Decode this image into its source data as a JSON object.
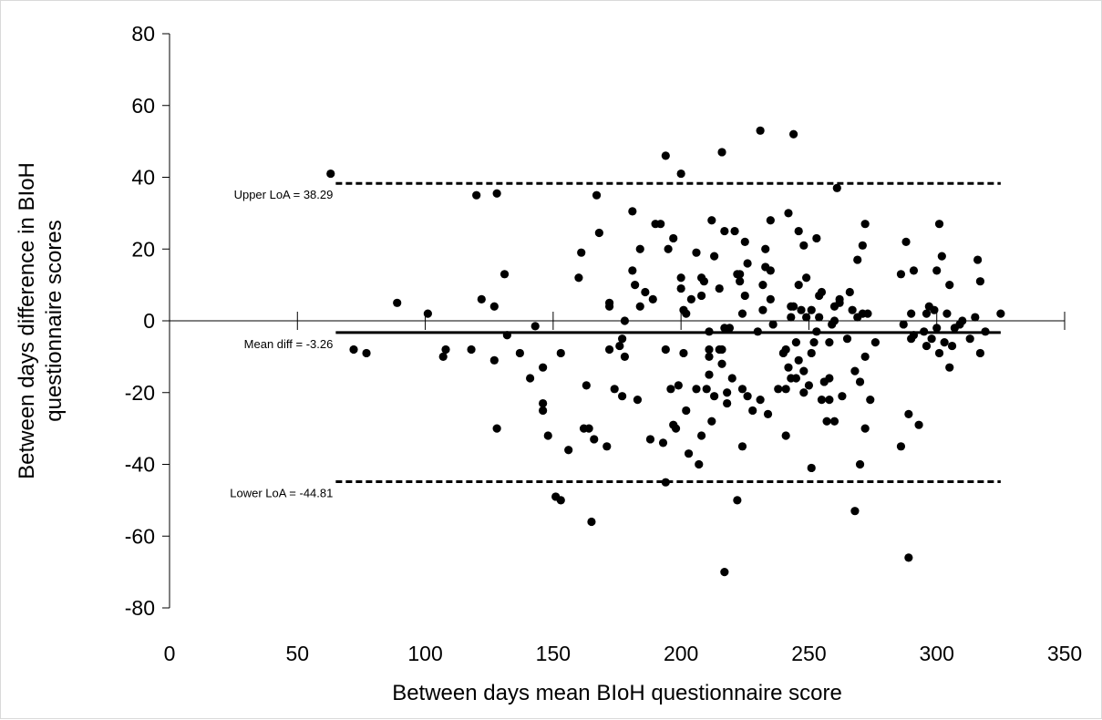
{
  "chart_data": {
    "type": "scatter",
    "title": "",
    "xlabel": "Between days mean BIoH questionnaire score",
    "ylabel": "Between days difference in BIoH questionnaire scores",
    "xlim": [
      0,
      350
    ],
    "ylim": [
      -80,
      80
    ],
    "x_ticks": [
      0,
      50,
      100,
      150,
      200,
      250,
      300,
      350
    ],
    "y_ticks": [
      80,
      60,
      40,
      20,
      0,
      -20,
      -40,
      -60,
      -80
    ],
    "x_tick_labels": [
      "0",
      "50",
      "100",
      "150",
      "200",
      "250",
      "300",
      "350"
    ],
    "y_tick_labels": [
      "80",
      "60",
      "40",
      "20",
      "0",
      "-20",
      "-40",
      "-60",
      "-80"
    ],
    "grid": false,
    "legend": "none",
    "marker_color": "#000000",
    "reference_lines": [
      {
        "label": "Upper LoA = 38.29",
        "y": 38.29,
        "style": "dashed",
        "x_start": 65,
        "x_end": 325
      },
      {
        "label": "Mean diff = -3.26",
        "y": -3.26,
        "style": "solid",
        "x_start": 65,
        "x_end": 325
      },
      {
        "label": "Lower LoA = -44.81",
        "y": -44.81,
        "style": "dashed",
        "x_start": 65,
        "x_end": 325
      }
    ],
    "points": [
      [
        63,
        41
      ],
      [
        72,
        -8
      ],
      [
        77,
        -9
      ],
      [
        89,
        5
      ],
      [
        101,
        2
      ],
      [
        107,
        -10
      ],
      [
        108,
        -8
      ],
      [
        118,
        -8
      ],
      [
        120,
        35
      ],
      [
        122,
        6
      ],
      [
        127,
        4
      ],
      [
        127,
        -11
      ],
      [
        128,
        -30
      ],
      [
        128,
        35.5
      ],
      [
        131,
        13
      ],
      [
        132,
        -4
      ],
      [
        137,
        -9
      ],
      [
        141,
        -16
      ],
      [
        143,
        -1.5
      ],
      [
        146,
        -13
      ],
      [
        146,
        -23
      ],
      [
        146,
        -25
      ],
      [
        148,
        -32
      ],
      [
        151,
        -49
      ],
      [
        153,
        -9
      ],
      [
        153,
        -50
      ],
      [
        156,
        -36
      ],
      [
        160,
        12
      ],
      [
        161,
        19
      ],
      [
        162,
        -30
      ],
      [
        163,
        -18
      ],
      [
        164,
        -30
      ],
      [
        165,
        -56
      ],
      [
        166,
        -33
      ],
      [
        167,
        35
      ],
      [
        168,
        24.5
      ],
      [
        171,
        -35
      ],
      [
        172,
        4
      ],
      [
        172,
        5
      ],
      [
        172,
        -8
      ],
      [
        174,
        -19
      ],
      [
        176,
        -7
      ],
      [
        177,
        -5
      ],
      [
        177,
        -21
      ],
      [
        178,
        -10
      ],
      [
        178,
        0
      ],
      [
        181,
        30.5
      ],
      [
        181,
        14
      ],
      [
        182,
        10
      ],
      [
        183,
        -22
      ],
      [
        184,
        4
      ],
      [
        184,
        20
      ],
      [
        186,
        8
      ],
      [
        188,
        -33
      ],
      [
        189,
        6
      ],
      [
        190,
        27
      ],
      [
        192,
        27
      ],
      [
        193,
        -34
      ],
      [
        194,
        46
      ],
      [
        194,
        -8
      ],
      [
        194,
        -45
      ],
      [
        195,
        20
      ],
      [
        196,
        -19
      ],
      [
        197,
        -29
      ],
      [
        197,
        23
      ],
      [
        198,
        -30
      ],
      [
        199,
        -18
      ],
      [
        200,
        9
      ],
      [
        200,
        12
      ],
      [
        200,
        41
      ],
      [
        201,
        3
      ],
      [
        201,
        -9
      ],
      [
        202,
        -25
      ],
      [
        202,
        2
      ],
      [
        203,
        -37
      ],
      [
        204,
        6
      ],
      [
        206,
        -19
      ],
      [
        206,
        19
      ],
      [
        207,
        -40
      ],
      [
        208,
        -32
      ],
      [
        208,
        7
      ],
      [
        208,
        12
      ],
      [
        209,
        11
      ],
      [
        210,
        -19
      ],
      [
        211,
        -3
      ],
      [
        211,
        -8
      ],
      [
        211,
        -10
      ],
      [
        211,
        -15
      ],
      [
        212,
        28
      ],
      [
        212,
        -28
      ],
      [
        213,
        -21
      ],
      [
        213,
        18
      ],
      [
        215,
        -8
      ],
      [
        215,
        9
      ],
      [
        216,
        -12
      ],
      [
        216,
        -8
      ],
      [
        217,
        -2
      ],
      [
        216,
        47
      ],
      [
        217,
        25
      ],
      [
        217,
        -70
      ],
      [
        218,
        -23
      ],
      [
        218,
        -20
      ],
      [
        219,
        -2
      ],
      [
        220,
        -16
      ],
      [
        221,
        25
      ],
      [
        222,
        13
      ],
      [
        222,
        -50
      ],
      [
        223,
        11
      ],
      [
        223,
        13
      ],
      [
        224,
        2
      ],
      [
        224,
        -35
      ],
      [
        224,
        -19
      ],
      [
        225,
        7
      ],
      [
        225,
        22
      ],
      [
        226,
        16
      ],
      [
        226,
        -21
      ],
      [
        228,
        -25
      ],
      [
        230,
        -3
      ],
      [
        231,
        -22
      ],
      [
        231,
        53
      ],
      [
        232,
        3
      ],
      [
        232,
        10
      ],
      [
        233,
        20
      ],
      [
        233,
        15
      ],
      [
        234,
        -26
      ],
      [
        235,
        6
      ],
      [
        235,
        14
      ],
      [
        235,
        28
      ],
      [
        236,
        -1
      ],
      [
        238,
        -19
      ],
      [
        240,
        -9
      ],
      [
        241,
        -8
      ],
      [
        241,
        -19
      ],
      [
        241,
        -32
      ],
      [
        242,
        30
      ],
      [
        242,
        -13
      ],
      [
        243,
        -16
      ],
      [
        243,
        1
      ],
      [
        243,
        4
      ],
      [
        244,
        52
      ],
      [
        244,
        4
      ],
      [
        245,
        -6
      ],
      [
        245,
        -16
      ],
      [
        246,
        -11
      ],
      [
        246,
        10
      ],
      [
        246,
        25
      ],
      [
        247,
        3
      ],
      [
        248,
        -14
      ],
      [
        248,
        -20
      ],
      [
        248,
        21
      ],
      [
        249,
        1
      ],
      [
        249,
        12
      ],
      [
        250,
        -18
      ],
      [
        251,
        3
      ],
      [
        251,
        -9
      ],
      [
        251,
        -41
      ],
      [
        252,
        -6
      ],
      [
        253,
        -3
      ],
      [
        253,
        23
      ],
      [
        254,
        1
      ],
      [
        254,
        7
      ],
      [
        255,
        8
      ],
      [
        255,
        -22
      ],
      [
        256,
        -17
      ],
      [
        257,
        -28
      ],
      [
        258,
        -22
      ],
      [
        258,
        -16
      ],
      [
        258,
        -6
      ],
      [
        259,
        -1
      ],
      [
        260,
        0
      ],
      [
        260,
        -28
      ],
      [
        260,
        4
      ],
      [
        261,
        37
      ],
      [
        262,
        5
      ],
      [
        262,
        6
      ],
      [
        263,
        -21
      ],
      [
        265,
        -5
      ],
      [
        266,
        8
      ],
      [
        267,
        3
      ],
      [
        268,
        -14
      ],
      [
        268,
        -53
      ],
      [
        269,
        17
      ],
      [
        269,
        1
      ],
      [
        270,
        -40
      ],
      [
        270,
        -17
      ],
      [
        271,
        21
      ],
      [
        271,
        2
      ],
      [
        272,
        27
      ],
      [
        272,
        -10
      ],
      [
        272,
        -30
      ],
      [
        273,
        2
      ],
      [
        274,
        -22
      ],
      [
        276,
        -6
      ],
      [
        286,
        13
      ],
      [
        286,
        -35
      ],
      [
        287,
        -1
      ],
      [
        288,
        22
      ],
      [
        289,
        -26
      ],
      [
        289,
        -66
      ],
      [
        290,
        2
      ],
      [
        290,
        -5
      ],
      [
        291,
        14
      ],
      [
        291,
        -4
      ],
      [
        293,
        -29
      ],
      [
        295,
        -3
      ],
      [
        296,
        -7
      ],
      [
        296,
        2
      ],
      [
        297,
        4
      ],
      [
        298,
        -5
      ],
      [
        299,
        3
      ],
      [
        300,
        14
      ],
      [
        300,
        -2
      ],
      [
        301,
        27
      ],
      [
        301,
        -9
      ],
      [
        302,
        18
      ],
      [
        303,
        -6
      ],
      [
        304,
        2
      ],
      [
        305,
        10
      ],
      [
        305,
        -13
      ],
      [
        306,
        -7
      ],
      [
        307,
        -2
      ],
      [
        309,
        -1
      ],
      [
        310,
        0
      ],
      [
        313,
        -5
      ],
      [
        315,
        1
      ],
      [
        316,
        17
      ],
      [
        317,
        11
      ],
      [
        317,
        -9
      ],
      [
        319,
        -3
      ],
      [
        325,
        2
      ]
    ]
  }
}
